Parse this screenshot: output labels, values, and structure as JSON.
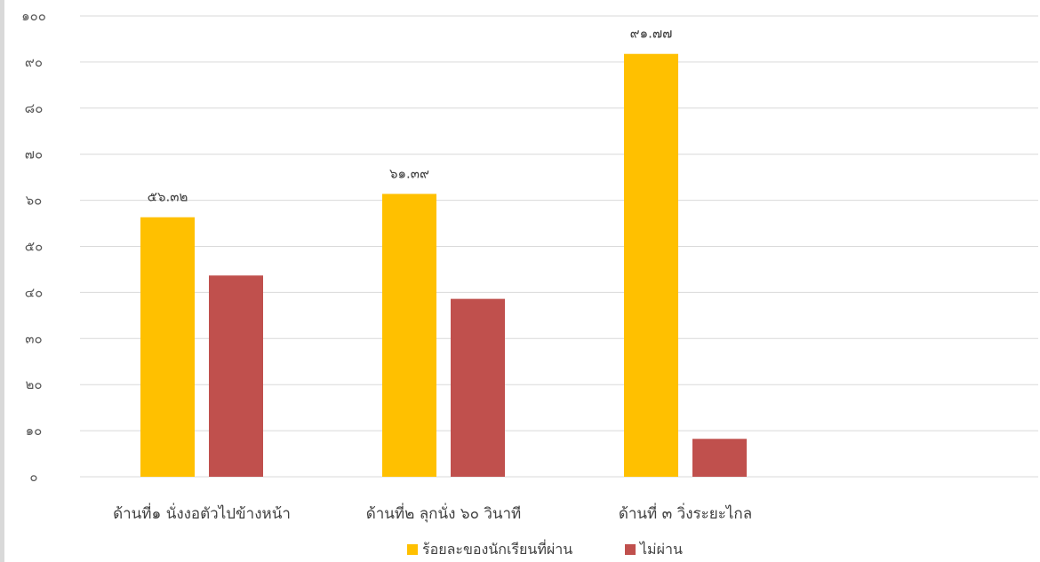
{
  "chart_data": {
    "type": "bar",
    "categories": [
      "ด้านที่๑ นั่งงอตัวไปข้างหน้า",
      "ด้านที่๒ ลุกนั่ง ๖๐ วินาที",
      "ด้านที่ ๓ วิ่งระยะไกล"
    ],
    "series": [
      {
        "name": "ร้อยละของนักเรียนที่ผ่าน",
        "values": [
          56.32,
          61.39,
          91.77
        ],
        "color": "#ffc000",
        "data_labels": [
          "๕๖.๓๒",
          "๖๑.๓๙",
          "๙๑.๗๗"
        ]
      },
      {
        "name": "ไม่ผ่าน",
        "values": [
          43.68,
          38.61,
          8.23
        ],
        "color": "#c0504d",
        "data_labels": [
          "",
          "",
          ""
        ]
      }
    ],
    "ylim": [
      0,
      100
    ],
    "yticks": [
      0,
      10,
      20,
      30,
      40,
      50,
      60,
      70,
      80,
      90,
      100
    ],
    "ytick_labels": [
      "๐",
      "๑๐",
      "๒๐",
      "๓๐",
      "๔๐",
      "๕๐",
      "๖๐",
      "๗๐",
      "๘๐",
      "๙๐",
      "๑๐๐"
    ],
    "title": "",
    "xlabel": "",
    "ylabel": "",
    "grid": true,
    "gridline_color": "#d9d9d9",
    "legend_position": "bottom"
  }
}
